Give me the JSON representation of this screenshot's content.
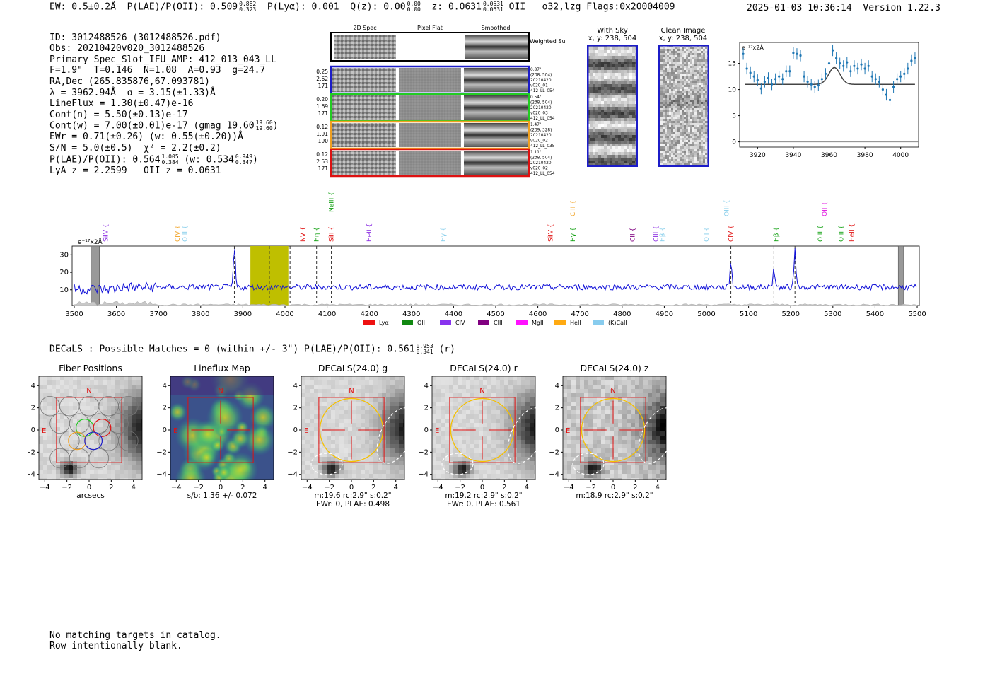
{
  "header": {
    "ew": "EW: 0.5±0.2Å",
    "plae_label": "P(LAE)/P(OII): 0.509",
    "plae_hi": "0.882",
    "plae_lo": "0.323",
    "plya": "P(Lyα): 0.001",
    "qz_label": "Q(z): 0.00",
    "qz_hi": "0.00",
    "qz_lo": "0.00",
    "z_label": "z: 0.0631",
    "z_hi": "0.0631",
    "z_lo": "0.0631",
    "z_line": "OII",
    "flags": "o32,lzg  Flags:0x20004009",
    "timestamp": "2025-01-03 10:36:14",
    "version": "Version 1.22.3"
  },
  "info": {
    "id": "ID: 3012488526 (3012488526.pdf)",
    "obs": "Obs: 20210420v020_3012488526",
    "spec": "Primary Spec_Slot_IFU_AMP: 412_013_043_LL",
    "fiber": "F=1.9\"  T=0.146  N=1.08  A=0.93  g=24.7",
    "radec": "RA,Dec (265.835876,67.093781)",
    "lambda": "λ = 3962.94Å  σ = 3.15(±1.33)Å",
    "lineflux": "LineFlux = 1.30(±0.47)e-16",
    "contn": "Cont(n) = 5.50(±0.13)e-17",
    "contw": "Cont(w) = 7.00(±0.01)e-17 (gmag 19.60",
    "contw_hi": "19.60",
    "contw_lo": "19.60",
    "contw_close": ")",
    "ewr": "EWr = 0.71(±0.26) (w: 0.55(±0.20))Å",
    "sn": "S/N = 5.0(±0.5)  χ² = 2.2(±0.2)",
    "plae": "P(LAE)/P(OII): 0.564",
    "plae_hi": "1.005",
    "plae_lo": "0.384",
    "plae_w": "(w: 0.534",
    "plae_w_hi": "0.949",
    "plae_w_lo": "0.347",
    "plae_w_close": ")",
    "lyaz": "LyA z = 2.2599   OII z = 0.0631"
  },
  "cutouts": {
    "headers": [
      "2D Spec",
      "Pixel Flat",
      "Smoothed"
    ],
    "weighted_label": "Weighted Sum",
    "rows": [
      {
        "stats": [
          "0.25",
          "2.62",
          "171"
        ],
        "meta": [
          "0.87\"",
          "(238, 504)",
          "20210420",
          "v020_01",
          "412_LL_054"
        ],
        "color": "#1c1cc8"
      },
      {
        "stats": [
          "0.20",
          "1.69",
          "171"
        ],
        "meta": [
          "0.54\"",
          "(238, 504)",
          "20210420",
          "v020_03",
          "412_LL_054"
        ],
        "color": "#22cc22"
      },
      {
        "stats": [
          "0.12",
          "1.91",
          "190"
        ],
        "meta": [
          "1.47\"",
          "(239, 328)",
          "20210420",
          "v020_02",
          "412_LL_035"
        ],
        "color": "#f0a020"
      },
      {
        "stats": [
          "0.12",
          "2.53",
          "171"
        ],
        "meta": [
          "1.11\"",
          "(238, 504)",
          "20210420",
          "v020_02",
          "412_LL_054"
        ],
        "color": "#dd1111"
      }
    ]
  },
  "sky": {
    "with_sky_title": "With Sky",
    "with_sky_xy": "x, y: 238, 504",
    "clean_title": "Clean Image",
    "clean_xy": "x, y: 238, 504"
  },
  "chart_data": [
    {
      "type": "scatter",
      "title": "",
      "ylabel_unit": "e⁻¹⁷x2Å",
      "xlim": [
        3910,
        4010
      ],
      "ylim": [
        -1,
        19
      ],
      "xticks": [
        3920,
        3940,
        3960,
        3980,
        4000
      ],
      "yticks": [
        0,
        5,
        10,
        15
      ],
      "points": [
        [
          3912,
          16.8
        ],
        [
          3914,
          14
        ],
        [
          3916,
          13.2
        ],
        [
          3918,
          12.5
        ],
        [
          3920,
          11.8
        ],
        [
          3922,
          10.2
        ],
        [
          3924,
          11.5
        ],
        [
          3926,
          12.2
        ],
        [
          3928,
          11
        ],
        [
          3930,
          12
        ],
        [
          3932,
          12.5
        ],
        [
          3934,
          12
        ],
        [
          3936,
          13.5
        ],
        [
          3938,
          13.5
        ],
        [
          3940,
          17
        ],
        [
          3942,
          16.8
        ],
        [
          3944,
          16.5
        ],
        [
          3946,
          12.5
        ],
        [
          3948,
          11.5
        ],
        [
          3950,
          11
        ],
        [
          3952,
          10.5
        ],
        [
          3954,
          10.8
        ],
        [
          3956,
          12
        ],
        [
          3958,
          13
        ],
        [
          3960,
          15
        ],
        [
          3962,
          17.5
        ],
        [
          3964,
          16
        ],
        [
          3966,
          15
        ],
        [
          3968,
          14.5
        ],
        [
          3970,
          15.2
        ],
        [
          3972,
          13.5
        ],
        [
          3974,
          14.5
        ],
        [
          3976,
          14
        ],
        [
          3978,
          14.8
        ],
        [
          3980,
          14
        ],
        [
          3982,
          14.5
        ],
        [
          3984,
          12.5
        ],
        [
          3986,
          12
        ],
        [
          3988,
          11.5
        ],
        [
          3990,
          10
        ],
        [
          3992,
          9
        ],
        [
          3994,
          8
        ],
        [
          3996,
          10.5
        ],
        [
          3998,
          12
        ],
        [
          4000,
          12.5
        ],
        [
          4002,
          13
        ],
        [
          4004,
          14
        ],
        [
          4006,
          15.5
        ],
        [
          4008,
          16
        ]
      ],
      "model": {
        "center": 3962.94,
        "sigma": 3.15,
        "continuum": 11.0,
        "amplitude": 3.2
      }
    },
    {
      "type": "line",
      "title": "",
      "ylabel_unit": "e⁻¹⁷x2Å",
      "xlim": [
        3495,
        5505
      ],
      "ylim": [
        1,
        35
      ],
      "xticks": [
        3500,
        3600,
        3700,
        3800,
        3900,
        4000,
        4100,
        4200,
        4300,
        4400,
        4500,
        4600,
        4700,
        4800,
        4900,
        5000,
        5100,
        5200,
        5300,
        5400,
        5500
      ],
      "yticks": [
        10,
        20,
        30
      ],
      "line_labels": [
        {
          "name": "SiIV",
          "x": 3575,
          "color": "#8a2be2",
          "row": 3
        },
        {
          "name": "CIV",
          "x": 3745,
          "color": "#f0a020",
          "row": 3
        },
        {
          "name": "OIII",
          "x": 3763,
          "color": "#87ceeb",
          "row": 3
        },
        {
          "name": "NV",
          "x": 4042,
          "color": "#e01010",
          "row": 2
        },
        {
          "name": "Hη",
          "x": 4075,
          "color": "#10a010",
          "row": 2
        },
        {
          "name": "NeIII",
          "x": 4110,
          "color": "#10a010",
          "row": 0
        },
        {
          "name": "SiII",
          "x": 4110,
          "color": "#e01010",
          "row": 2
        },
        {
          "name": "HeII",
          "x": 4200,
          "color": "#8a2be2",
          "row": 2
        },
        {
          "name": "Hγ",
          "x": 4375,
          "color": "#87ceeb",
          "row": 3
        },
        {
          "name": "SiIV",
          "x": 4630,
          "color": "#e01010",
          "row": 2
        },
        {
          "name": "CIII",
          "x": 4683,
          "color": "#f0a020",
          "row": 1
        },
        {
          "name": "Hγ",
          "x": 4683,
          "color": "#10a010",
          "row": 2
        },
        {
          "name": "CII",
          "x": 4825,
          "color": "#800080",
          "row": 2
        },
        {
          "name": "CIII",
          "x": 4880,
          "color": "#8a2be2",
          "row": 2
        },
        {
          "name": "Hβ",
          "x": 4895,
          "color": "#87ceeb",
          "row": 2
        },
        {
          "name": "OII",
          "x": 5000,
          "color": "#87ceeb",
          "row": 2
        },
        {
          "name": "OIII",
          "x": 5048,
          "color": "#87ceeb",
          "row": 1
        },
        {
          "name": "CIV",
          "x": 5058,
          "color": "#e01010",
          "row": 2
        },
        {
          "name": "Hβ",
          "x": 5165,
          "color": "#10a010",
          "row": 2
        },
        {
          "name": "OIII",
          "x": 5270,
          "color": "#10a010",
          "row": 2
        },
        {
          "name": "OII",
          "x": 5280,
          "color": "#e010e0",
          "row": 1
        },
        {
          "name": "OIII",
          "x": 5320,
          "color": "#10a010",
          "row": 2
        },
        {
          "name": "HeII",
          "x": 5345,
          "color": "#e01010",
          "row": 2
        }
      ],
      "dashed_lines": [
        3880,
        3962.94,
        4012,
        4075,
        4110,
        5058,
        5160,
        5210
      ],
      "highlight_band": [
        3918,
        4008
      ],
      "legend": [
        {
          "name": "Lyα",
          "color": "#ee1111"
        },
        {
          "name": "OII",
          "color": "#118811"
        },
        {
          "name": "CIV",
          "color": "#8833ee"
        },
        {
          "name": "CIII",
          "color": "#800080"
        },
        {
          "name": "MgII",
          "color": "#ff11ff"
        },
        {
          "name": "HeII",
          "color": "#ffaa11"
        },
        {
          "name": "(K)CaII",
          "color": "#88ccee"
        }
      ],
      "emission_peaks": [
        {
          "x": 3880,
          "peak": 34
        },
        {
          "x": 5058,
          "peak": 27
        },
        {
          "x": 5160,
          "peak": 23
        },
        {
          "x": 5210,
          "peak": 35
        }
      ],
      "baseline": 11.5
    }
  ],
  "decals": {
    "summary": "DECaLS : Possible Matches = 0 (within +/- 3\")  P(LAE)/P(OII): 0.561",
    "plae_hi": "0.953",
    "plae_lo": "0.341",
    "band_suffix": "(r)",
    "panels": [
      {
        "title": "Fiber Positions",
        "xlabel": "arcsecs",
        "xlabel2": ""
      },
      {
        "title": "Lineflux Map",
        "xlabel": "s/b: 1.36 +/- 0.072",
        "xlabel2": ""
      },
      {
        "title": "DECaLS(24.0) g",
        "xlabel": "m:19.6 rc:2.9\"  s:0.2\"",
        "xlabel2": "EWr: 0, PLAE: 0.498"
      },
      {
        "title": "DECaLS(24.0) r",
        "xlabel": "m:19.2 rc:2.9\"  s:0.2\"",
        "xlabel2": "EWr: 0, PLAE: 0.561"
      },
      {
        "title": "DECaLS(24.0) z",
        "xlabel": "m:18.9 rc:2.9\"  s:0.2\"",
        "xlabel2": ""
      }
    ],
    "n_label": "N",
    "e_label": "E",
    "ticks": [
      "−4",
      "−2",
      "0",
      "2",
      "4"
    ]
  },
  "footer": {
    "line1": "No matching targets in catalog.",
    "line2": "Row intentionally blank."
  }
}
